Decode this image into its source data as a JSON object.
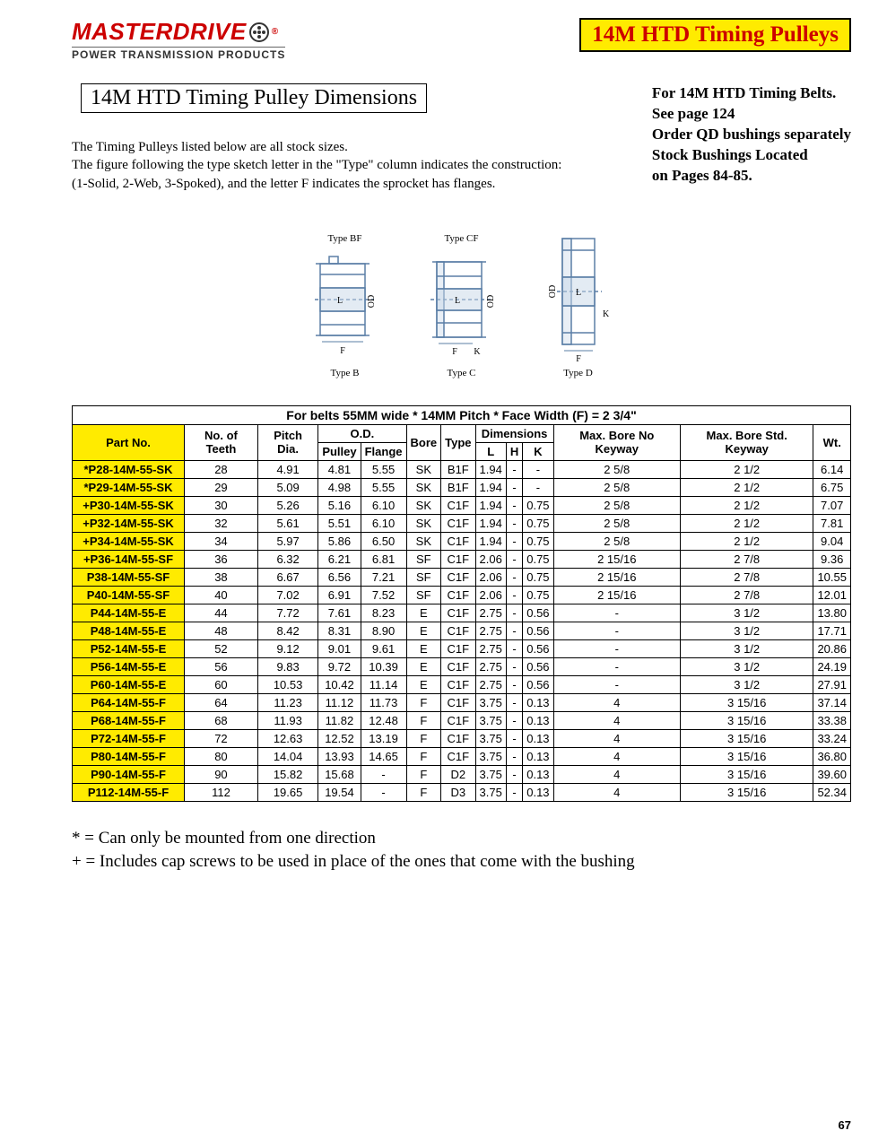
{
  "brand": {
    "name": "MASTERDRIVE",
    "tagline": "POWER TRANSMISSION PRODUCTS",
    "reg": "®"
  },
  "banner_title": "14M HTD Timing Pulleys",
  "subtitle": "14M HTD Timing Pulley Dimensions",
  "info": {
    "l1": "For 14M HTD Timing Belts.",
    "l2": "See page 124",
    "l3": "Order QD bushings separately",
    "l4": "Stock Bushings Located",
    "l5": "on Pages 84-85."
  },
  "intro": {
    "l1": "The Timing Pulleys listed below are all stock sizes.",
    "l2": "The figure following the type sketch letter in the \"Type\" column indicates the construction:",
    "l3": "(1-Solid, 2-Web, 3-Spoked), and the letter F indicates the sprocket has flanges."
  },
  "diagram_labels": {
    "bf_top": "Type BF",
    "b_bot": "Type B",
    "cf_top": "Type CF",
    "c_bot": "Type C",
    "d_bot": "Type D",
    "od": "OD",
    "l": "L",
    "f": "F",
    "k": "K"
  },
  "table": {
    "caption": "For belts 55MM wide * 14MM Pitch * Face Width (F) = 2 3/4\"",
    "headers": {
      "partno": "Part No.",
      "teeth": "No. of Teeth",
      "pitch": "Pitch Dia.",
      "od": "O.D.",
      "od_pulley": "Pulley",
      "od_flange": "Flange",
      "bore": "Bore",
      "type": "Type",
      "dims": "Dimensions",
      "dim_l": "L",
      "dim_h": "H",
      "dim_k": "K",
      "maxbore_nk": "Max. Bore No Keyway",
      "maxbore_sk": "Max. Bore Std. Keyway",
      "wt": "Wt."
    },
    "colors": {
      "highlight_bg": "#ffeb00",
      "border": "#000000",
      "text": "#000000"
    },
    "rows": [
      {
        "pn": "*P28-14M-55-SK",
        "teeth": "28",
        "pitch": "4.91",
        "odp": "4.81",
        "odf": "5.55",
        "bore": "SK",
        "type": "B1F",
        "l": "1.94",
        "h": "-",
        "k": "-",
        "mbnk": "2 5/8",
        "mbsk": "2 1/2",
        "wt": "6.14"
      },
      {
        "pn": "*P29-14M-55-SK",
        "teeth": "29",
        "pitch": "5.09",
        "odp": "4.98",
        "odf": "5.55",
        "bore": "SK",
        "type": "B1F",
        "l": "1.94",
        "h": "-",
        "k": "-",
        "mbnk": "2 5/8",
        "mbsk": "2 1/2",
        "wt": "6.75"
      },
      {
        "pn": "+P30-14M-55-SK",
        "teeth": "30",
        "pitch": "5.26",
        "odp": "5.16",
        "odf": "6.10",
        "bore": "SK",
        "type": "C1F",
        "l": "1.94",
        "h": "-",
        "k": "0.75",
        "mbnk": "2 5/8",
        "mbsk": "2 1/2",
        "wt": "7.07"
      },
      {
        "pn": "+P32-14M-55-SK",
        "teeth": "32",
        "pitch": "5.61",
        "odp": "5.51",
        "odf": "6.10",
        "bore": "SK",
        "type": "C1F",
        "l": "1.94",
        "h": "-",
        "k": "0.75",
        "mbnk": "2 5/8",
        "mbsk": "2 1/2",
        "wt": "7.81"
      },
      {
        "pn": "+P34-14M-55-SK",
        "teeth": "34",
        "pitch": "5.97",
        "odp": "5.86",
        "odf": "6.50",
        "bore": "SK",
        "type": "C1F",
        "l": "1.94",
        "h": "-",
        "k": "0.75",
        "mbnk": "2 5/8",
        "mbsk": "2 1/2",
        "wt": "9.04"
      },
      {
        "pn": "+P36-14M-55-SF",
        "teeth": "36",
        "pitch": "6.32",
        "odp": "6.21",
        "odf": "6.81",
        "bore": "SF",
        "type": "C1F",
        "l": "2.06",
        "h": "-",
        "k": "0.75",
        "mbnk": "2 15/16",
        "mbsk": "2 7/8",
        "wt": "9.36"
      },
      {
        "pn": "P38-14M-55-SF",
        "teeth": "38",
        "pitch": "6.67",
        "odp": "6.56",
        "odf": "7.21",
        "bore": "SF",
        "type": "C1F",
        "l": "2.06",
        "h": "-",
        "k": "0.75",
        "mbnk": "2 15/16",
        "mbsk": "2 7/8",
        "wt": "10.55"
      },
      {
        "pn": "P40-14M-55-SF",
        "teeth": "40",
        "pitch": "7.02",
        "odp": "6.91",
        "odf": "7.52",
        "bore": "SF",
        "type": "C1F",
        "l": "2.06",
        "h": "-",
        "k": "0.75",
        "mbnk": "2 15/16",
        "mbsk": "2 7/8",
        "wt": "12.01"
      },
      {
        "pn": "P44-14M-55-E",
        "teeth": "44",
        "pitch": "7.72",
        "odp": "7.61",
        "odf": "8.23",
        "bore": "E",
        "type": "C1F",
        "l": "2.75",
        "h": "-",
        "k": "0.56",
        "mbnk": "-",
        "mbsk": "3 1/2",
        "wt": "13.80"
      },
      {
        "pn": "P48-14M-55-E",
        "teeth": "48",
        "pitch": "8.42",
        "odp": "8.31",
        "odf": "8.90",
        "bore": "E",
        "type": "C1F",
        "l": "2.75",
        "h": "-",
        "k": "0.56",
        "mbnk": "-",
        "mbsk": "3 1/2",
        "wt": "17.71"
      },
      {
        "pn": "P52-14M-55-E",
        "teeth": "52",
        "pitch": "9.12",
        "odp": "9.01",
        "odf": "9.61",
        "bore": "E",
        "type": "C1F",
        "l": "2.75",
        "h": "-",
        "k": "0.56",
        "mbnk": "-",
        "mbsk": "3 1/2",
        "wt": "20.86"
      },
      {
        "pn": "P56-14M-55-E",
        "teeth": "56",
        "pitch": "9.83",
        "odp": "9.72",
        "odf": "10.39",
        "bore": "E",
        "type": "C1F",
        "l": "2.75",
        "h": "-",
        "k": "0.56",
        "mbnk": "-",
        "mbsk": "3 1/2",
        "wt": "24.19"
      },
      {
        "pn": "P60-14M-55-E",
        "teeth": "60",
        "pitch": "10.53",
        "odp": "10.42",
        "odf": "11.14",
        "bore": "E",
        "type": "C1F",
        "l": "2.75",
        "h": "-",
        "k": "0.56",
        "mbnk": "-",
        "mbsk": "3 1/2",
        "wt": "27.91"
      },
      {
        "pn": "P64-14M-55-F",
        "teeth": "64",
        "pitch": "11.23",
        "odp": "11.12",
        "odf": "11.73",
        "bore": "F",
        "type": "C1F",
        "l": "3.75",
        "h": "-",
        "k": "0.13",
        "mbnk": "4",
        "mbsk": "3 15/16",
        "wt": "37.14"
      },
      {
        "pn": "P68-14M-55-F",
        "teeth": "68",
        "pitch": "11.93",
        "odp": "11.82",
        "odf": "12.48",
        "bore": "F",
        "type": "C1F",
        "l": "3.75",
        "h": "-",
        "k": "0.13",
        "mbnk": "4",
        "mbsk": "3 15/16",
        "wt": "33.38"
      },
      {
        "pn": "P72-14M-55-F",
        "teeth": "72",
        "pitch": "12.63",
        "odp": "12.52",
        "odf": "13.19",
        "bore": "F",
        "type": "C1F",
        "l": "3.75",
        "h": "-",
        "k": "0.13",
        "mbnk": "4",
        "mbsk": "3 15/16",
        "wt": "33.24"
      },
      {
        "pn": "P80-14M-55-F",
        "teeth": "80",
        "pitch": "14.04",
        "odp": "13.93",
        "odf": "14.65",
        "bore": "F",
        "type": "C1F",
        "l": "3.75",
        "h": "-",
        "k": "0.13",
        "mbnk": "4",
        "mbsk": "3 15/16",
        "wt": "36.80"
      },
      {
        "pn": "P90-14M-55-F",
        "teeth": "90",
        "pitch": "15.82",
        "odp": "15.68",
        "odf": "-",
        "bore": "F",
        "type": "D2",
        "l": "3.75",
        "h": "-",
        "k": "0.13",
        "mbnk": "4",
        "mbsk": "3 15/16",
        "wt": "39.60"
      },
      {
        "pn": "P112-14M-55-F",
        "teeth": "112",
        "pitch": "19.65",
        "odp": "19.54",
        "odf": "-",
        "bore": "F",
        "type": "D3",
        "l": "3.75",
        "h": "-",
        "k": "0.13",
        "mbnk": "4",
        "mbsk": "3 15/16",
        "wt": "52.34"
      }
    ]
  },
  "footnotes": {
    "f1": "* = Can only be mounted from one direction",
    "f2": "+ = Includes cap screws to be used in place of the ones that come with the bushing"
  },
  "page_number": "67"
}
